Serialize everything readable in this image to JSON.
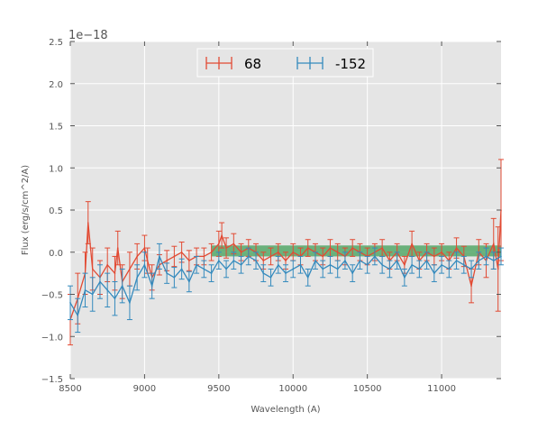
{
  "chart_data": {
    "type": "line",
    "title": "",
    "xlabel": "Wavelength (A)",
    "ylabel": "Flux (erg/s/cm^2/A)",
    "y_offset_label": "1e−18",
    "xlim": [
      8500,
      11400
    ],
    "ylim": [
      -1.5,
      2.5
    ],
    "xticks": [
      8500,
      9000,
      9500,
      10000,
      10500,
      11000
    ],
    "xtick_labels": [
      "8500",
      "9000",
      "9500",
      "10000",
      "10500",
      "11000"
    ],
    "yticks": [
      -1.5,
      -1.0,
      -0.5,
      0.0,
      0.5,
      1.0,
      1.5,
      2.0,
      2.5
    ],
    "ytick_labels": [
      "−1.5",
      "−1.0",
      "−0.5",
      "0.0",
      "0.5",
      "1.0",
      "1.5",
      "2.0",
      "2.5"
    ],
    "grid": true,
    "legend_position": "top-center",
    "band": {
      "x_start": 9450,
      "x_end": 11400,
      "y_low": -0.05,
      "y_high": 0.08,
      "color": "#55a868"
    },
    "series": [
      {
        "name": "68",
        "color": "#e24a33",
        "x": [
          8500,
          8550,
          8600,
          8620,
          8650,
          8700,
          8750,
          8800,
          8820,
          8850,
          8900,
          8950,
          9000,
          9020,
          9050,
          9100,
          9150,
          9200,
          9250,
          9300,
          9350,
          9400,
          9450,
          9500,
          9520,
          9550,
          9600,
          9650,
          9700,
          9750,
          9800,
          9850,
          9900,
          9950,
          10000,
          10050,
          10100,
          10150,
          10200,
          10250,
          10300,
          10350,
          10400,
          10450,
          10500,
          10550,
          10600,
          10650,
          10700,
          10750,
          10800,
          10850,
          10900,
          10950,
          11000,
          11050,
          11100,
          11150,
          11200,
          11250,
          11300,
          11350,
          11380,
          11400
        ],
        "y": [
          -0.8,
          -0.55,
          -0.25,
          0.35,
          -0.2,
          -0.3,
          -0.15,
          -0.25,
          0.05,
          -0.35,
          -0.2,
          -0.05,
          0.05,
          -0.1,
          -0.3,
          -0.15,
          -0.1,
          -0.05,
          0.0,
          -0.1,
          -0.05,
          -0.05,
          0.0,
          0.1,
          0.2,
          0.05,
          0.1,
          0.0,
          0.05,
          0.0,
          -0.1,
          -0.05,
          0.0,
          -0.1,
          0.0,
          -0.05,
          0.05,
          0.0,
          -0.05,
          0.05,
          0.0,
          -0.05,
          0.05,
          0.0,
          -0.05,
          0.0,
          0.05,
          -0.1,
          0.0,
          -0.15,
          0.1,
          -0.1,
          0.0,
          -0.05,
          0.0,
          -0.1,
          0.05,
          -0.05,
          -0.4,
          0.0,
          -0.1,
          0.1,
          -0.2,
          0.5
        ],
        "err": [
          0.3,
          0.3,
          0.25,
          0.25,
          0.25,
          0.2,
          0.2,
          0.2,
          0.2,
          0.2,
          0.2,
          0.15,
          0.15,
          0.15,
          0.15,
          0.12,
          0.12,
          0.12,
          0.12,
          0.12,
          0.1,
          0.1,
          0.1,
          0.15,
          0.15,
          0.12,
          0.12,
          0.1,
          0.1,
          0.1,
          0.1,
          0.1,
          0.1,
          0.1,
          0.1,
          0.1,
          0.1,
          0.1,
          0.1,
          0.1,
          0.1,
          0.1,
          0.1,
          0.1,
          0.1,
          0.1,
          0.1,
          0.1,
          0.1,
          0.1,
          0.15,
          0.1,
          0.1,
          0.1,
          0.1,
          0.1,
          0.12,
          0.12,
          0.2,
          0.15,
          0.2,
          0.3,
          0.5,
          0.6
        ]
      },
      {
        "name": "-152",
        "color": "#348abd",
        "x": [
          8500,
          8550,
          8600,
          8650,
          8700,
          8750,
          8800,
          8850,
          8900,
          8950,
          9000,
          9050,
          9100,
          9150,
          9200,
          9250,
          9300,
          9350,
          9400,
          9450,
          9500,
          9550,
          9600,
          9650,
          9700,
          9750,
          9800,
          9850,
          9900,
          9950,
          10000,
          10050,
          10100,
          10150,
          10200,
          10250,
          10300,
          10350,
          10400,
          10450,
          10500,
          10550,
          10600,
          10650,
          10700,
          10750,
          10800,
          10850,
          10900,
          10950,
          11000,
          11050,
          11100,
          11150,
          11200,
          11250,
          11300,
          11350,
          11400
        ],
        "y": [
          -0.6,
          -0.75,
          -0.45,
          -0.5,
          -0.35,
          -0.45,
          -0.55,
          -0.4,
          -0.6,
          -0.3,
          -0.15,
          -0.4,
          -0.05,
          -0.25,
          -0.3,
          -0.2,
          -0.35,
          -0.15,
          -0.2,
          -0.25,
          -0.1,
          -0.2,
          -0.1,
          -0.15,
          -0.05,
          -0.1,
          -0.25,
          -0.3,
          -0.15,
          -0.25,
          -0.2,
          -0.15,
          -0.3,
          -0.1,
          -0.2,
          -0.15,
          -0.2,
          -0.1,
          -0.25,
          -0.1,
          -0.15,
          -0.05,
          -0.15,
          -0.2,
          -0.1,
          -0.3,
          -0.15,
          -0.2,
          -0.1,
          -0.25,
          -0.15,
          -0.2,
          -0.1,
          -0.15,
          -0.2,
          -0.1,
          -0.05,
          -0.1,
          -0.05
        ],
        "err": [
          0.2,
          0.2,
          0.2,
          0.2,
          0.2,
          0.2,
          0.2,
          0.2,
          0.2,
          0.15,
          0.15,
          0.15,
          0.15,
          0.12,
          0.12,
          0.12,
          0.12,
          0.1,
          0.1,
          0.1,
          0.1,
          0.1,
          0.1,
          0.1,
          0.1,
          0.1,
          0.1,
          0.1,
          0.1,
          0.1,
          0.1,
          0.1,
          0.1,
          0.1,
          0.1,
          0.1,
          0.1,
          0.1,
          0.1,
          0.1,
          0.1,
          0.1,
          0.1,
          0.1,
          0.1,
          0.1,
          0.1,
          0.1,
          0.1,
          0.1,
          0.1,
          0.1,
          0.1,
          0.1,
          0.1,
          0.1,
          0.1,
          0.1,
          0.1
        ]
      }
    ]
  }
}
